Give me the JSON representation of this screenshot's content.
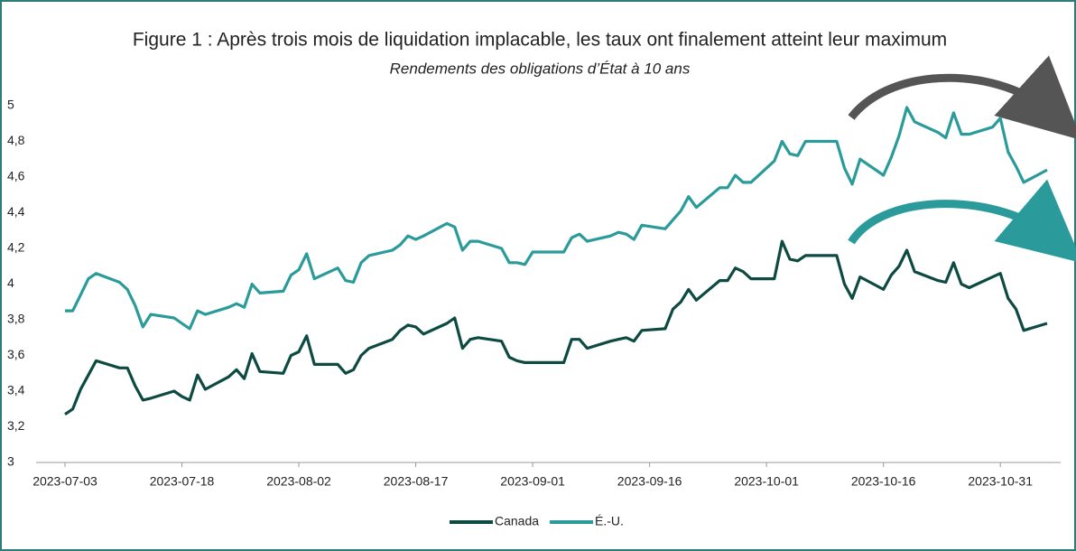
{
  "chart_data": {
    "type": "line",
    "title": "Figure 1 : Après trois mois de liquidation implacable, les taux ont finalement atteint leur maximum",
    "subtitle": "Rendements des obligations d’État à 10 ans",
    "x": [
      "2023-07-03",
      "2023-07-04",
      "2023-07-05",
      "2023-07-06",
      "2023-07-07",
      "2023-07-10",
      "2023-07-11",
      "2023-07-12",
      "2023-07-13",
      "2023-07-14",
      "2023-07-17",
      "2023-07-18",
      "2023-07-19",
      "2023-07-20",
      "2023-07-21",
      "2023-07-24",
      "2023-07-25",
      "2023-07-26",
      "2023-07-27",
      "2023-07-28",
      "2023-07-31",
      "2023-08-01",
      "2023-08-02",
      "2023-08-03",
      "2023-08-04",
      "2023-08-07",
      "2023-08-08",
      "2023-08-09",
      "2023-08-10",
      "2023-08-11",
      "2023-08-14",
      "2023-08-15",
      "2023-08-16",
      "2023-08-17",
      "2023-08-18",
      "2023-08-21",
      "2023-08-22",
      "2023-08-23",
      "2023-08-24",
      "2023-08-25",
      "2023-08-28",
      "2023-08-29",
      "2023-08-30",
      "2023-08-31",
      "2023-09-01",
      "2023-09-05",
      "2023-09-06",
      "2023-09-07",
      "2023-09-08",
      "2023-09-11",
      "2023-09-12",
      "2023-09-13",
      "2023-09-14",
      "2023-09-15",
      "2023-09-18",
      "2023-09-19",
      "2023-09-20",
      "2023-09-21",
      "2023-09-22",
      "2023-09-25",
      "2023-09-26",
      "2023-09-27",
      "2023-09-28",
      "2023-09-29",
      "2023-10-02",
      "2023-10-03",
      "2023-10-04",
      "2023-10-05",
      "2023-10-06",
      "2023-10-10",
      "2023-10-11",
      "2023-10-12",
      "2023-10-13",
      "2023-10-16",
      "2023-10-17",
      "2023-10-18",
      "2023-10-19",
      "2023-10-20",
      "2023-10-23",
      "2023-10-24",
      "2023-10-25",
      "2023-10-26",
      "2023-10-27",
      "2023-10-30",
      "2023-10-31",
      "2023-11-01",
      "2023-11-02",
      "2023-11-03",
      "2023-11-06"
    ],
    "series": [
      {
        "name": "Canada",
        "color": "#0d4a42",
        "values": [
          3.27,
          3.3,
          3.41,
          3.49,
          3.57,
          3.53,
          3.53,
          3.43,
          3.35,
          3.36,
          3.4,
          3.37,
          3.35,
          3.49,
          3.41,
          3.48,
          3.52,
          3.47,
          3.61,
          3.51,
          3.5,
          3.6,
          3.62,
          3.71,
          3.55,
          3.55,
          3.5,
          3.52,
          3.6,
          3.64,
          3.69,
          3.74,
          3.77,
          3.76,
          3.72,
          3.78,
          3.81,
          3.64,
          3.69,
          3.7,
          3.68,
          3.59,
          3.57,
          3.56,
          3.56,
          3.56,
          3.69,
          3.69,
          3.64,
          3.68,
          3.69,
          3.7,
          3.68,
          3.74,
          3.75,
          3.86,
          3.9,
          3.97,
          3.91,
          4.02,
          4.02,
          4.09,
          4.07,
          4.03,
          4.03,
          4.24,
          4.14,
          4.13,
          4.16,
          4.16,
          4.0,
          3.92,
          4.04,
          3.97,
          4.05,
          4.1,
          4.19,
          4.07,
          4.02,
          4.01,
          4.12,
          4.0,
          3.98,
          4.04,
          4.06,
          3.92,
          3.86,
          3.74,
          3.78
        ]
      },
      {
        "name": "É.-U.",
        "color": "#2a9a9a",
        "values": [
          3.85,
          3.85,
          3.94,
          4.03,
          4.06,
          4.01,
          3.97,
          3.88,
          3.76,
          3.83,
          3.81,
          3.78,
          3.75,
          3.85,
          3.83,
          3.87,
          3.89,
          3.87,
          4.0,
          3.95,
          3.96,
          4.05,
          4.08,
          4.17,
          4.03,
          4.09,
          4.02,
          4.01,
          4.12,
          4.16,
          4.19,
          4.22,
          4.27,
          4.25,
          4.27,
          4.34,
          4.32,
          4.19,
          4.24,
          4.24,
          4.2,
          4.12,
          4.12,
          4.11,
          4.18,
          4.18,
          4.26,
          4.28,
          4.24,
          4.27,
          4.29,
          4.28,
          4.25,
          4.33,
          4.31,
          4.36,
          4.41,
          4.49,
          4.43,
          4.54,
          4.54,
          4.61,
          4.57,
          4.57,
          4.69,
          4.8,
          4.73,
          4.72,
          4.8,
          4.8,
          4.65,
          4.56,
          4.7,
          4.61,
          4.71,
          4.83,
          4.99,
          4.91,
          4.85,
          4.82,
          4.96,
          4.84,
          4.84,
          4.88,
          4.93,
          4.74,
          4.66,
          4.57,
          4.64
        ]
      }
    ],
    "xlim": [
      "2023-07-03",
      "2023-11-06"
    ],
    "xticks": [
      "2023-07-03",
      "2023-07-18",
      "2023-08-02",
      "2023-08-17",
      "2023-09-01",
      "2023-09-16",
      "2023-10-01",
      "2023-10-16",
      "2023-10-31"
    ],
    "ylim": [
      3,
      5
    ],
    "yticks": [
      3,
      {
        "value": 3.2,
        "label": "3,2"
      },
      {
        "value": 3.4,
        "label": "3,4"
      },
      {
        "value": 3.6,
        "label": "3,6"
      },
      {
        "value": 3.8,
        "label": "3,8"
      },
      4,
      {
        "value": 4.2,
        "label": "4,2"
      },
      {
        "value": 4.4,
        "label": "4,4"
      },
      {
        "value": 4.6,
        "label": "4,6"
      },
      {
        "value": 4.8,
        "label": "4,8"
      },
      5
    ],
    "legend": "bottom"
  }
}
